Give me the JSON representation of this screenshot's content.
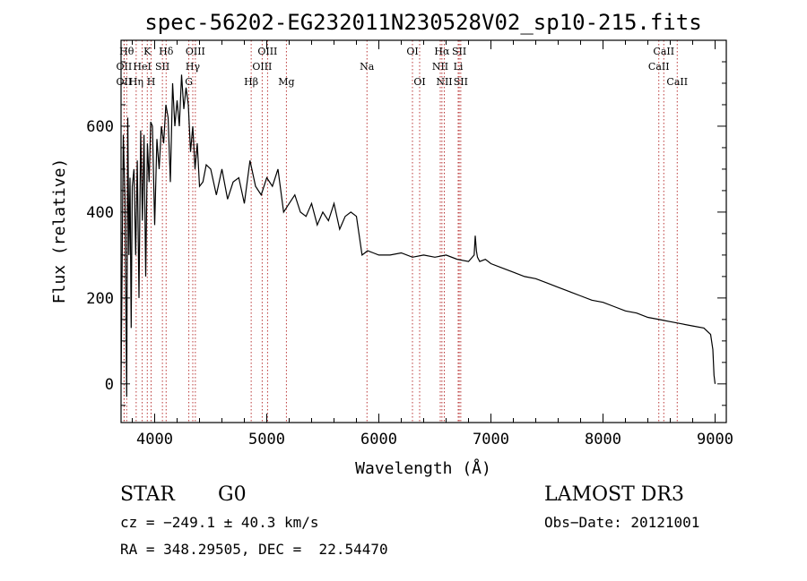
{
  "chart_data": {
    "type": "line",
    "title": "spec-56202-EG232011N230528V02_sp10-215.fits",
    "xlabel": "Wavelength (Å)",
    "ylabel": "Flux (relative)",
    "xlim": [
      3700,
      9100
    ],
    "ylim": [
      -90,
      800
    ],
    "xticks": [
      4000,
      5000,
      6000,
      7000,
      8000,
      9000
    ],
    "yticks": [
      0,
      200,
      400,
      600
    ],
    "series": [
      {
        "name": "flux",
        "x": [
          3700,
          3720,
          3735,
          3750,
          3760,
          3770,
          3780,
          3790,
          3800,
          3815,
          3830,
          3845,
          3860,
          3875,
          3890,
          3905,
          3920,
          3935,
          3950,
          3965,
          3980,
          4000,
          4020,
          4040,
          4060,
          4080,
          4100,
          4120,
          4140,
          4160,
          4180,
          4200,
          4220,
          4240,
          4260,
          4280,
          4300,
          4320,
          4340,
          4360,
          4380,
          4400,
          4430,
          4460,
          4500,
          4550,
          4600,
          4650,
          4700,
          4750,
          4800,
          4850,
          4900,
          4950,
          5000,
          5050,
          5100,
          5150,
          5200,
          5250,
          5300,
          5350,
          5400,
          5450,
          5500,
          5550,
          5600,
          5650,
          5700,
          5750,
          5800,
          5850,
          5900,
          5950,
          6000,
          6100,
          6200,
          6300,
          6400,
          6500,
          6600,
          6700,
          6800,
          6850,
          6860,
          6870,
          6880,
          6900,
          6950,
          7000,
          7100,
          7200,
          7300,
          7400,
          7500,
          7600,
          7700,
          7800,
          7900,
          8000,
          8100,
          8200,
          8300,
          8400,
          8500,
          8600,
          8700,
          8800,
          8900,
          8960,
          8980,
          8990,
          9000
        ],
        "y": [
          0,
          580,
          430,
          -30,
          620,
          300,
          480,
          130,
          460,
          500,
          300,
          520,
          200,
          590,
          380,
          580,
          250,
          560,
          470,
          610,
          600,
          370,
          570,
          500,
          600,
          560,
          650,
          620,
          470,
          700,
          600,
          660,
          600,
          720,
          640,
          690,
          650,
          540,
          600,
          500,
          560,
          460,
          470,
          510,
          500,
          440,
          500,
          430,
          470,
          480,
          420,
          520,
          460,
          440,
          480,
          460,
          500,
          400,
          420,
          440,
          400,
          390,
          420,
          370,
          400,
          380,
          420,
          360,
          390,
          400,
          390,
          300,
          310,
          305,
          300,
          300,
          305,
          295,
          300,
          295,
          300,
          290,
          285,
          300,
          345,
          310,
          295,
          285,
          290,
          280,
          270,
          260,
          250,
          245,
          235,
          225,
          215,
          205,
          195,
          190,
          180,
          170,
          165,
          155,
          150,
          145,
          140,
          135,
          130,
          115,
          80,
          20,
          0
        ]
      }
    ],
    "lines": [
      {
        "name": "OII",
        "x": 3727,
        "row": 2
      },
      {
        "name": "OII",
        "x": 3727,
        "row": 3
      },
      {
        "name": "Hθ",
        "x": 3750,
        "row": 1
      },
      {
        "name": "Hη",
        "x": 3835,
        "row": 3
      },
      {
        "name": "HeI",
        "x": 3889,
        "row": 2
      },
      {
        "name": "K",
        "x": 3934,
        "row": 1
      },
      {
        "name": "SII",
        "x": 4069,
        "row": 2
      },
      {
        "name": "H",
        "x": 3968,
        "row": 3
      },
      {
        "name": "Hδ",
        "x": 4102,
        "row": 1
      },
      {
        "name": "OIII",
        "x": 4363,
        "row": 1
      },
      {
        "name": "Hγ",
        "x": 4340,
        "row": 2
      },
      {
        "name": "G",
        "x": 4305,
        "row": 3
      },
      {
        "name": "Hβ",
        "x": 4861,
        "row": 3
      },
      {
        "name": "OIII",
        "x": 5007,
        "row": 1
      },
      {
        "name": "OIII",
        "x": 4959,
        "row": 2
      },
      {
        "name": "Mg",
        "x": 5175,
        "row": 3
      },
      {
        "name": "Na",
        "x": 5894,
        "row": 2
      },
      {
        "name": "OI",
        "x": 6300,
        "row": 1
      },
      {
        "name": "OI",
        "x": 6364,
        "row": 3
      },
      {
        "name": "Hα",
        "x": 6563,
        "row": 1
      },
      {
        "name": "NII",
        "x": 6548,
        "row": 2
      },
      {
        "name": "NII",
        "x": 6584,
        "row": 3
      },
      {
        "name": "SII",
        "x": 6717,
        "row": 1
      },
      {
        "name": "Li",
        "x": 6708,
        "row": 2
      },
      {
        "name": "SII",
        "x": 6731,
        "row": 3
      },
      {
        "name": "CaII",
        "x": 8542,
        "row": 1
      },
      {
        "name": "CaII",
        "x": 8498,
        "row": 2
      },
      {
        "name": "CaII",
        "x": 8662,
        "row": 3
      }
    ]
  },
  "info": {
    "class": "STAR",
    "subclass": "G0",
    "survey": "LAMOST DR3",
    "cz": "cz = −249.1 ± 40.3 km/s",
    "obsdate": "Obs−Date: 20121001",
    "coords": "RA = 348.29505, DEC =  22.54470"
  },
  "colors": {
    "line_marker": "#b22222",
    "spectrum": "#000000"
  }
}
